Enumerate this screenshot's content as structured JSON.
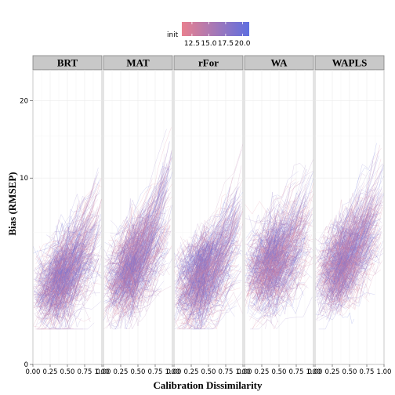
{
  "chart_data": {
    "type": "line",
    "title": "",
    "xlabel": "Calibration Dissimilarity",
    "ylabel": "Bias (RMSEP)",
    "xlim": [
      0,
      1
    ],
    "xticks": [
      0,
      0.25,
      0.5,
      0.75,
      1
    ],
    "xtick_labels": [
      "0.00",
      "0.25",
      "0.50",
      "0.75",
      "1.00"
    ],
    "ylim": [
      0,
      25
    ],
    "y_scale": "sqrt",
    "yticks": [
      0,
      10,
      20
    ],
    "ytick_labels": [
      "0",
      "10",
      "20"
    ],
    "grid": true,
    "facets": [
      "BRT",
      "MAT",
      "rFor",
      "WA",
      "WAPLS"
    ],
    "facet_series": [
      {
        "name": "BRT",
        "typical_start": 1.6,
        "typical_end": 5.5
      },
      {
        "name": "MAT",
        "typical_start": 1.8,
        "typical_end": 7.5
      },
      {
        "name": "rFor",
        "typical_start": 1.6,
        "typical_end": 5.5
      },
      {
        "name": "WA",
        "typical_start": 2.4,
        "typical_end": 6.0
      },
      {
        "name": "WAPLS",
        "typical_start": 2.2,
        "typical_end": 7.0
      }
    ],
    "legend": {
      "title": "init",
      "position": "top",
      "labels": [
        "12.5",
        "15.0",
        "17.5",
        "20.0"
      ],
      "range": [
        11,
        21
      ],
      "colors": [
        "#e8808f",
        "#5f6fe0"
      ]
    }
  }
}
